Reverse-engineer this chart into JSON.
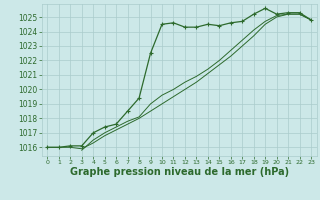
{
  "bg_color": "#cce8e8",
  "grid_color": "#aacccc",
  "line_color": "#2d6a2d",
  "xlabel": "Graphe pression niveau de la mer (hPa)",
  "xlabel_fontsize": 7.0,
  "ylabel_ticks": [
    1016,
    1017,
    1018,
    1019,
    1020,
    1021,
    1022,
    1023,
    1024,
    1025
  ],
  "xlim": [
    -0.5,
    23.5
  ],
  "ylim": [
    1015.4,
    1025.9
  ],
  "line1_x": [
    0,
    1,
    2,
    3,
    4,
    5,
    6,
    7,
    8,
    9,
    10,
    11,
    12,
    13,
    14,
    15,
    16,
    17,
    18,
    19,
    20,
    21,
    22,
    23
  ],
  "line1_y": [
    1016.0,
    1016.0,
    1016.1,
    1016.1,
    1017.0,
    1017.4,
    1017.6,
    1018.5,
    1019.4,
    1022.5,
    1024.5,
    1024.6,
    1024.3,
    1024.3,
    1024.5,
    1024.4,
    1024.6,
    1024.7,
    1025.2,
    1025.6,
    1025.2,
    1025.3,
    1025.3,
    1024.8
  ],
  "line2_x": [
    0,
    1,
    2,
    3,
    4,
    5,
    6,
    7,
    8,
    9,
    10,
    11,
    12,
    13,
    14,
    15,
    16,
    17,
    18,
    19,
    20,
    21,
    22,
    23
  ],
  "line2_y": [
    1016.0,
    1016.0,
    1016.0,
    1015.9,
    1016.3,
    1016.8,
    1017.2,
    1017.6,
    1018.0,
    1018.5,
    1019.0,
    1019.5,
    1020.0,
    1020.5,
    1021.1,
    1021.7,
    1022.3,
    1023.0,
    1023.7,
    1024.5,
    1025.0,
    1025.2,
    1025.2,
    1024.8
  ],
  "line3_x": [
    3,
    4,
    5,
    6,
    7,
    8,
    9,
    10,
    11,
    12,
    13,
    14,
    15,
    16,
    17,
    18,
    19,
    20,
    21,
    22,
    23
  ],
  "line3_y": [
    1015.8,
    1016.5,
    1017.0,
    1017.4,
    1017.8,
    1018.1,
    1019.0,
    1019.6,
    1020.0,
    1020.5,
    1020.9,
    1021.4,
    1022.0,
    1022.7,
    1023.4,
    1024.1,
    1024.7,
    1025.1,
    1025.2,
    1025.2,
    1024.8
  ]
}
